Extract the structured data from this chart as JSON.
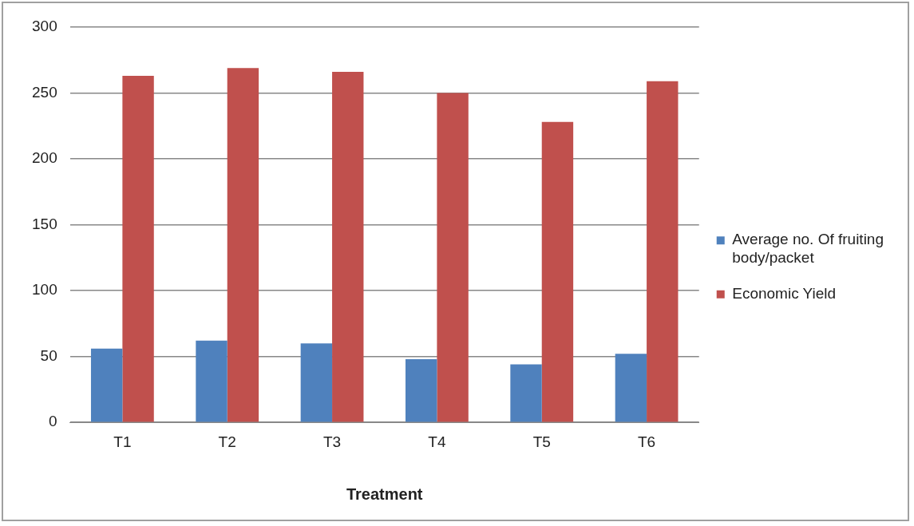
{
  "chart_data": {
    "type": "bar",
    "xlabel": "Treatment",
    "categories": [
      "T1",
      "T2",
      "T3",
      "T4",
      "T5",
      "T6"
    ],
    "series": [
      {
        "name": "Average no. Of fruiting body/packet",
        "color": "#4f81bd",
        "values": [
          56,
          62,
          60,
          48,
          44,
          52
        ]
      },
      {
        "name": "Economic Yield",
        "color": "#c0504d",
        "values": [
          263,
          269,
          266,
          250,
          228,
          259
        ]
      }
    ],
    "ylim": [
      0,
      300
    ],
    "yticks": [
      0,
      50,
      100,
      150,
      200,
      250,
      300
    ],
    "grid": "y",
    "legend": "right"
  }
}
